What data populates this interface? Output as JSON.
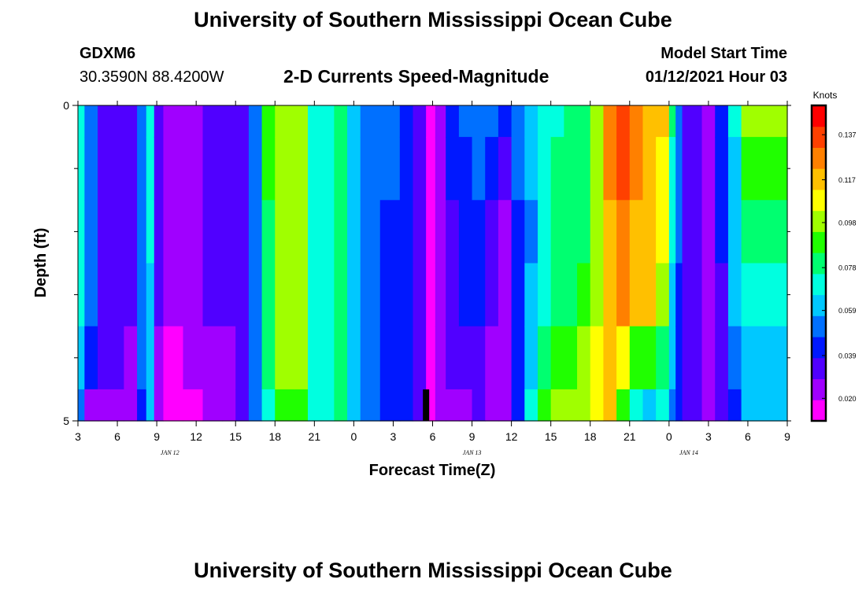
{
  "header": {
    "title": "University of Southern Mississippi Ocean Cube",
    "footer_title": "University of Southern Mississippi Ocean Cube",
    "station_id": "GDXM6",
    "coordinates": "30.3590N 88.4200W",
    "model_start_label": "Model Start Time",
    "model_start_value": "01/12/2021 Hour 03"
  },
  "chart_data": {
    "type": "heatmap",
    "title": "2-D Currents Speed-Magnitude",
    "xlabel": "Forecast Time(Z)",
    "ylabel": "Depth (ft)",
    "x_ticks": [
      "3",
      "6",
      "9",
      "12",
      "15",
      "18",
      "21",
      "0",
      "3",
      "6",
      "9",
      "12",
      "15",
      "18",
      "21",
      "0",
      "3",
      "6",
      "9"
    ],
    "x_start_hour": 3,
    "x_hours": 54,
    "date_labels": [
      {
        "text": "JAN 12",
        "hour": 10
      },
      {
        "text": "JAN 13",
        "hour": 33
      },
      {
        "text": "JAN 14",
        "hour": 49.5
      }
    ],
    "y_tick_labels": [
      {
        "value": 0,
        "text": "0"
      },
      {
        "value": 5,
        "text": "5"
      }
    ],
    "y_minor_ticks": [
      1,
      2,
      3,
      4
    ],
    "y_range": [
      0,
      5
    ],
    "colorbar": {
      "unit": "Knots",
      "min": 0.01,
      "max": 0.15,
      "ticks": [
        "0.137",
        "0.117",
        "0.098",
        "0.078",
        "0.059",
        "0.039",
        "0.020"
      ],
      "colors": [
        "#ff00ff",
        "#a000ff",
        "#5000ff",
        "#0018ff",
        "#0070ff",
        "#00c8ff",
        "#00ffe0",
        "#00ff70",
        "#20ff00",
        "#a0ff00",
        "#ffff00",
        "#ffc000",
        "#ff8000",
        "#ff4000",
        "#ff0000"
      ]
    },
    "now_marker_hour": 29.5,
    "depth_profile": {
      "depths": [
        0,
        0.5,
        1.5,
        2.5,
        3.5,
        4.5,
        5
      ],
      "points": [
        [
          3,
          0.07,
          0.07,
          0.07,
          0.07,
          0.06,
          0.05
        ],
        [
          3.5,
          0.05,
          0.05,
          0.05,
          0.05,
          0.04,
          0.02
        ],
        [
          4.5,
          0.03,
          0.03,
          0.03,
          0.03,
          0.03,
          0.02
        ],
        [
          5.5,
          0.035,
          0.035,
          0.035,
          0.035,
          0.03,
          0.022
        ],
        [
          6.5,
          0.032,
          0.03,
          0.03,
          0.03,
          0.028,
          0.02
        ],
        [
          7.5,
          0.055,
          0.055,
          0.055,
          0.05,
          0.05,
          0.045
        ],
        [
          8.2,
          0.068,
          0.068,
          0.068,
          0.065,
          0.065,
          0.065
        ],
        [
          8.8,
          0.03,
          0.03,
          0.03,
          0.03,
          0.028,
          0.025
        ],
        [
          9.5,
          0.025,
          0.025,
          0.022,
          0.02,
          0.018,
          0.015
        ],
        [
          11,
          0.028,
          0.028,
          0.028,
          0.028,
          0.022,
          0.018
        ],
        [
          12.5,
          0.03,
          0.03,
          0.03,
          0.03,
          0.024,
          0.02
        ],
        [
          14,
          0.032,
          0.032,
          0.032,
          0.032,
          0.028,
          0.025
        ],
        [
          15,
          0.036,
          0.036,
          0.036,
          0.036,
          0.032,
          0.032
        ],
        [
          16,
          0.055,
          0.055,
          0.055,
          0.052,
          0.05,
          0.05
        ],
        [
          17,
          0.085,
          0.085,
          0.082,
          0.08,
          0.078,
          0.075
        ],
        [
          18,
          0.1,
          0.1,
          0.1,
          0.098,
          0.095,
          0.092
        ],
        [
          19.5,
          0.1,
          0.1,
          0.1,
          0.098,
          0.095,
          0.09
        ],
        [
          20.5,
          0.07,
          0.07,
          0.07,
          0.07,
          0.07,
          0.07
        ],
        [
          21.5,
          0.07,
          0.07,
          0.07,
          0.07,
          0.068,
          0.066
        ],
        [
          22.5,
          0.082,
          0.082,
          0.08,
          0.08,
          0.078,
          0.078
        ],
        [
          23.5,
          0.065,
          0.065,
          0.065,
          0.062,
          0.062,
          0.06
        ],
        [
          24.5,
          0.05,
          0.05,
          0.05,
          0.05,
          0.05,
          0.05
        ],
        [
          26,
          0.048,
          0.048,
          0.046,
          0.046,
          0.046,
          0.046
        ],
        [
          27.5,
          0.042,
          0.042,
          0.042,
          0.042,
          0.042,
          0.042
        ],
        [
          28.5,
          0.032,
          0.03,
          0.03,
          0.03,
          0.03,
          0.03
        ],
        [
          29.5,
          0.015,
          0.015,
          0.015,
          0.015,
          0.015,
          0.015
        ],
        [
          30.2,
          0.02,
          0.02,
          0.02,
          0.02,
          0.02,
          0.02
        ],
        [
          31,
          0.045,
          0.038,
          0.036,
          0.034,
          0.03,
          0.025
        ],
        [
          32,
          0.052,
          0.045,
          0.04,
          0.038,
          0.035,
          0.028
        ],
        [
          33,
          0.055,
          0.05,
          0.045,
          0.04,
          0.035,
          0.03
        ],
        [
          34,
          0.05,
          0.042,
          0.035,
          0.03,
          0.028,
          0.025
        ],
        [
          35,
          0.045,
          0.03,
          0.028,
          0.026,
          0.024,
          0.022
        ],
        [
          36,
          0.055,
          0.05,
          0.045,
          0.04,
          0.038,
          0.04
        ],
        [
          37,
          0.062,
          0.06,
          0.055,
          0.06,
          0.06,
          0.07
        ],
        [
          38,
          0.07,
          0.07,
          0.072,
          0.075,
          0.08,
          0.085
        ],
        [
          39,
          0.075,
          0.078,
          0.08,
          0.078,
          0.085,
          0.095
        ],
        [
          40,
          0.078,
          0.078,
          0.08,
          0.08,
          0.09,
          0.1
        ],
        [
          41,
          0.08,
          0.078,
          0.082,
          0.085,
          0.095,
          0.1
        ],
        [
          42,
          0.1,
          0.1,
          0.1,
          0.1,
          0.105,
          0.11
        ],
        [
          43,
          0.13,
          0.125,
          0.12,
          0.12,
          0.12,
          0.12
        ],
        [
          44,
          0.14,
          0.135,
          0.128,
          0.125,
          0.11,
          0.09
        ],
        [
          45,
          0.13,
          0.128,
          0.12,
          0.12,
          0.09,
          0.072
        ],
        [
          46,
          0.12,
          0.12,
          0.118,
          0.115,
          0.085,
          0.062
        ],
        [
          47,
          0.115,
          0.11,
          0.105,
          0.1,
          0.082,
          0.07
        ],
        [
          48,
          0.082,
          0.075,
          0.07,
          0.062,
          0.058,
          0.055
        ],
        [
          48.5,
          0.05,
          0.05,
          0.048,
          0.045,
          0.042,
          0.04
        ],
        [
          49,
          0.035,
          0.035,
          0.035,
          0.035,
          0.035,
          0.035
        ],
        [
          50.5,
          0.025,
          0.025,
          0.025,
          0.025,
          0.025,
          0.025
        ],
        [
          51.5,
          0.045,
          0.04,
          0.038,
          0.035,
          0.03,
          0.03
        ],
        [
          52.5,
          0.068,
          0.065,
          0.06,
          0.06,
          0.055,
          0.045
        ],
        [
          53.5,
          0.1,
          0.085,
          0.078,
          0.075,
          0.06,
          0.06
        ],
        [
          57,
          0.1,
          0.085,
          0.078,
          0.075,
          0.06,
          0.06
        ]
      ]
    }
  }
}
